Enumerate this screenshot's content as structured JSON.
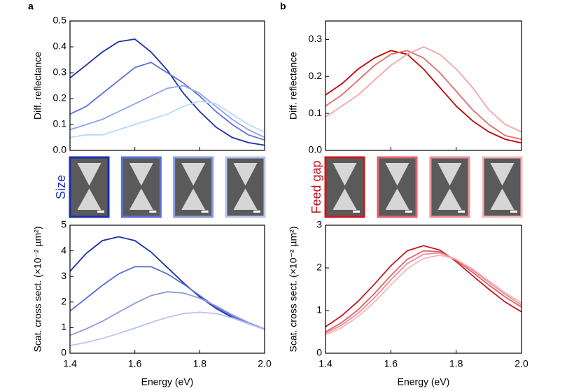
{
  "panels": [
    {
      "label": "a",
      "image_label": "Size",
      "image_label_color": "#1f35c0"
    },
    {
      "label": "b",
      "image_label": "Feed gap",
      "image_label_color": "#c0101a"
    }
  ],
  "chart_data": [
    {
      "type": "line",
      "ylabel": "Diff. reflectance",
      "x": [
        1.4,
        1.45,
        1.5,
        1.55,
        1.6,
        1.65,
        1.7,
        1.75,
        1.8,
        1.85,
        1.9,
        1.95,
        2.0
      ],
      "xlim": [
        1.4,
        2.0
      ],
      "xticks": [
        1.4,
        1.6,
        1.8,
        2
      ],
      "show_xtick_labels": false,
      "ylim": [
        0,
        0.5
      ],
      "yticks": [
        {
          "value": 0,
          "label": "0.0"
        },
        0.1,
        0.2,
        0.3,
        0.4,
        0.5
      ],
      "series": [
        {
          "color": "#1a2fa8",
          "values": [
            0.28,
            0.33,
            0.38,
            0.42,
            0.43,
            0.38,
            0.31,
            0.22,
            0.15,
            0.09,
            0.05,
            0.03,
            0.02
          ]
        },
        {
          "color": "#5a72e0",
          "values": [
            0.14,
            0.17,
            0.22,
            0.27,
            0.32,
            0.34,
            0.3,
            0.26,
            0.21,
            0.15,
            0.1,
            0.06,
            0.04
          ]
        },
        {
          "color": "#8ea2ee",
          "values": [
            0.08,
            0.1,
            0.12,
            0.15,
            0.18,
            0.21,
            0.24,
            0.25,
            0.22,
            0.17,
            0.12,
            0.08,
            0.05
          ]
        },
        {
          "color": "#b3dcf7",
          "values": [
            0.05,
            0.06,
            0.06,
            0.08,
            0.1,
            0.12,
            0.14,
            0.17,
            0.19,
            0.18,
            0.14,
            0.1,
            0.07
          ]
        }
      ]
    },
    {
      "type": "line",
      "ylabel": "Scat. cross sect. (×10⁻² µm²)",
      "xlabel": "Energy (eV)",
      "x": [
        1.4,
        1.45,
        1.5,
        1.55,
        1.6,
        1.65,
        1.7,
        1.75,
        1.8,
        1.85,
        1.9,
        1.95,
        2.0
      ],
      "xlim": [
        1.4,
        2.0
      ],
      "xticks": [
        1.4,
        1.6,
        1.8,
        {
          "value": 2,
          "label": "2.0"
        }
      ],
      "show_xtick_labels": true,
      "ylim": [
        0,
        5
      ],
      "yticks": [
        0,
        1,
        2,
        3,
        4,
        5
      ],
      "series": [
        {
          "color": "#1a2fa8",
          "values": [
            3.2,
            3.9,
            4.4,
            4.55,
            4.4,
            3.95,
            3.35,
            2.75,
            2.2,
            1.75,
            1.4,
            1.15,
            0.95
          ]
        },
        {
          "color": "#5a6fd8",
          "values": [
            1.65,
            2.15,
            2.65,
            3.1,
            3.38,
            3.38,
            3.1,
            2.7,
            2.25,
            1.8,
            1.45,
            1.15,
            0.95
          ]
        },
        {
          "color": "#8a9be0",
          "values": [
            0.7,
            0.95,
            1.25,
            1.6,
            1.95,
            2.25,
            2.4,
            2.35,
            2.15,
            1.85,
            1.5,
            1.2,
            0.95
          ]
        },
        {
          "color": "#bac4ee",
          "values": [
            0.3,
            0.42,
            0.58,
            0.77,
            0.98,
            1.2,
            1.4,
            1.55,
            1.6,
            1.55,
            1.38,
            1.15,
            0.92
          ]
        }
      ]
    },
    {
      "type": "line",
      "ylabel": "Diff. reflectance",
      "x": [
        1.4,
        1.45,
        1.5,
        1.55,
        1.6,
        1.65,
        1.7,
        1.75,
        1.8,
        1.85,
        1.9,
        1.95,
        2.0
      ],
      "xlim": [
        1.4,
        2.0
      ],
      "xticks": [
        1.4,
        1.6,
        1.8,
        2
      ],
      "show_xtick_labels": false,
      "ylim": [
        0,
        0.35
      ],
      "yticks": [
        {
          "value": 0,
          "label": "0.0"
        },
        0.1,
        0.2,
        0.3
      ],
      "series": [
        {
          "color": "#c00000",
          "values": [
            0.15,
            0.18,
            0.22,
            0.25,
            0.27,
            0.26,
            0.22,
            0.17,
            0.12,
            0.08,
            0.05,
            0.03,
            0.02
          ]
        },
        {
          "color": "#e86a6a",
          "values": [
            0.12,
            0.15,
            0.19,
            0.23,
            0.26,
            0.27,
            0.25,
            0.21,
            0.16,
            0.11,
            0.07,
            0.04,
            0.03
          ]
        },
        {
          "color": "#f3a6a6",
          "values": [
            0.09,
            0.12,
            0.15,
            0.19,
            0.23,
            0.26,
            0.28,
            0.26,
            0.22,
            0.17,
            0.11,
            0.07,
            0.05
          ]
        }
      ]
    },
    {
      "type": "line",
      "ylabel": "Scat. cross sect. (×10⁻² µm²)",
      "xlabel": "Energy (eV)",
      "x": [
        1.4,
        1.45,
        1.5,
        1.55,
        1.6,
        1.65,
        1.7,
        1.75,
        1.8,
        1.85,
        1.9,
        1.95,
        2.0
      ],
      "xlim": [
        1.4,
        2.0
      ],
      "xticks": [
        1.4,
        1.6,
        1.8,
        {
          "value": 2,
          "label": "2.0"
        }
      ],
      "show_xtick_labels": true,
      "ylim": [
        0,
        3
      ],
      "yticks": [
        0,
        1,
        2,
        3
      ],
      "series": [
        {
          "color": "#c8181e",
          "values": [
            0.62,
            0.88,
            1.22,
            1.62,
            2.05,
            2.4,
            2.52,
            2.42,
            2.15,
            1.82,
            1.5,
            1.2,
            0.97
          ]
        },
        {
          "color": "#e0626a",
          "values": [
            0.5,
            0.72,
            1.02,
            1.4,
            1.82,
            2.2,
            2.4,
            2.38,
            2.18,
            1.9,
            1.6,
            1.32,
            1.08
          ]
        },
        {
          "color": "#ec9096",
          "values": [
            0.47,
            0.66,
            0.94,
            1.3,
            1.72,
            2.1,
            2.32,
            2.35,
            2.2,
            1.95,
            1.66,
            1.38,
            1.13
          ]
        },
        {
          "color": "#f4b7ba",
          "values": [
            0.43,
            0.6,
            0.86,
            1.2,
            1.6,
            1.98,
            2.22,
            2.3,
            2.2,
            1.98,
            1.7,
            1.42,
            1.18
          ]
        }
      ]
    }
  ]
}
